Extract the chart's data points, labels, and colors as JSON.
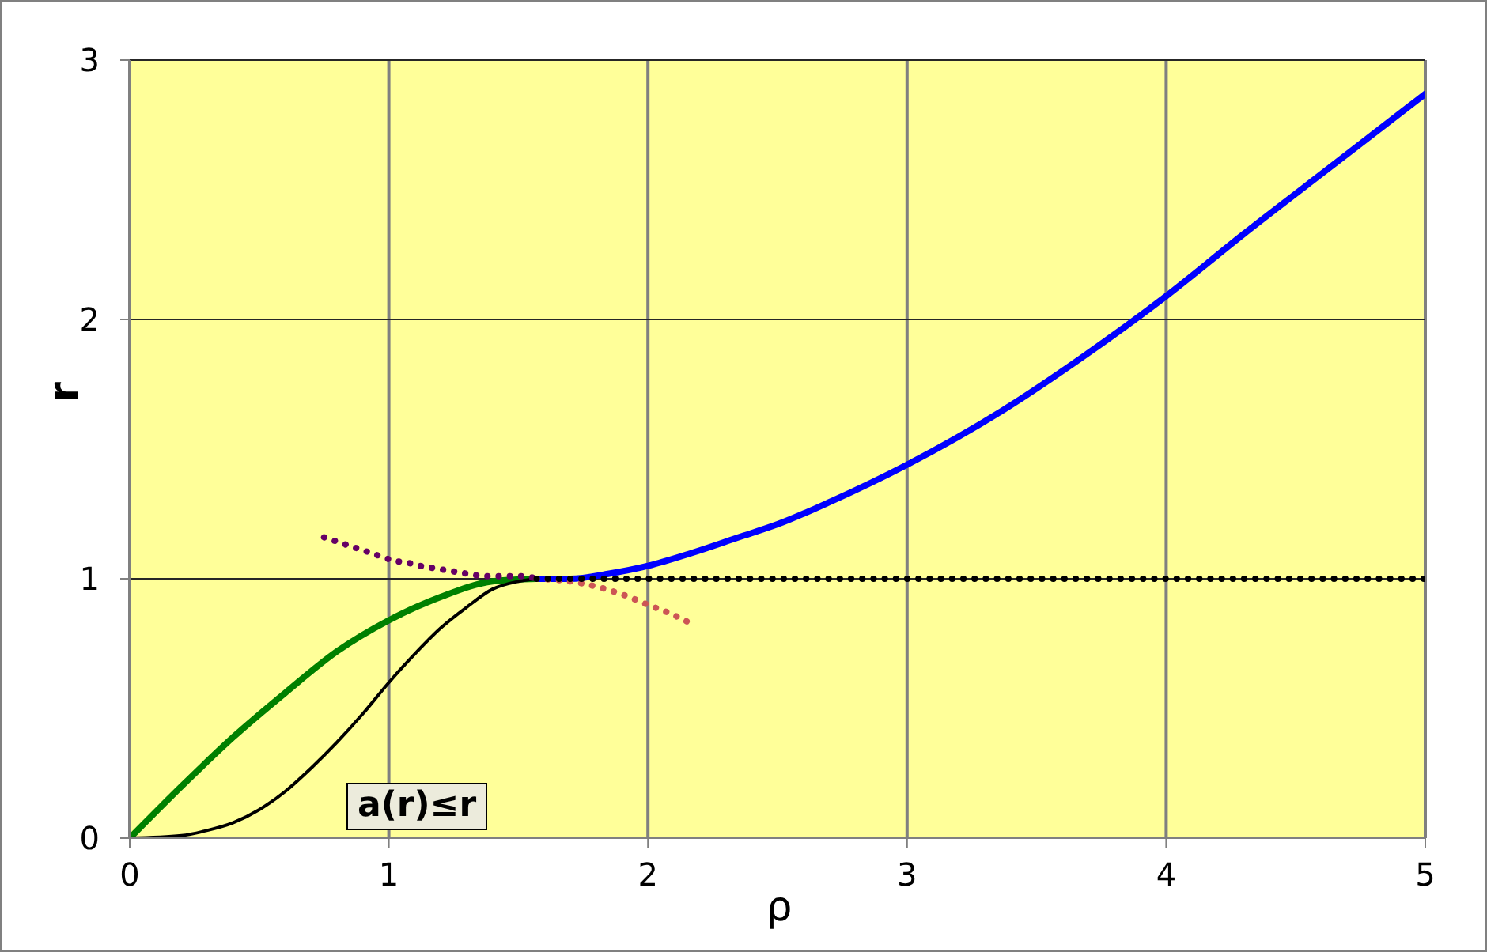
{
  "chart_data": {
    "type": "line",
    "xlabel": "ρ",
    "ylabel": "r",
    "xlim": [
      0,
      5
    ],
    "xticks": [
      0,
      1,
      2,
      3,
      4,
      5
    ],
    "ylim": [
      0,
      3
    ],
    "yticks": [
      0,
      1,
      2,
      3
    ],
    "grid": true,
    "marker": "none",
    "annotations": [
      "a(r)≤r"
    ],
    "series": [
      {
        "color": "#008000",
        "line_style": "solid",
        "x": [
          0,
          0.2,
          0.4,
          0.6,
          0.8,
          1.0,
          1.2,
          1.4,
          1.57
        ],
        "values": [
          0,
          0.2,
          0.39,
          0.56,
          0.72,
          0.84,
          0.93,
          0.99,
          1.0
        ]
      },
      {
        "color": "#000000",
        "line_style": "solid",
        "x": [
          0,
          0.2,
          0.3,
          0.4,
          0.5,
          0.6,
          0.7,
          0.8,
          0.9,
          1.0,
          1.1,
          1.2,
          1.3,
          1.4,
          1.5,
          1.57
        ],
        "values": [
          0,
          0.01,
          0.03,
          0.06,
          0.11,
          0.18,
          0.27,
          0.37,
          0.48,
          0.6,
          0.71,
          0.81,
          0.89,
          0.96,
          0.99,
          1.0
        ]
      },
      {
        "color": "#0000ff",
        "line_style": "solid",
        "x": [
          1.57,
          1.7,
          1.85,
          2,
          2.17,
          2.35,
          2.5,
          2.71,
          3,
          3.37,
          3.67,
          4,
          4.3,
          4.65,
          5
        ],
        "values": [
          1,
          1.0,
          1.02,
          1.05,
          1.1,
          1.16,
          1.21,
          1.3,
          1.44,
          1.65,
          1.85,
          2.09,
          2.33,
          2.6,
          2.87
        ]
      },
      {
        "color": "#660066",
        "line_style": "dotted",
        "x": [
          0.75,
          0.81,
          0.87,
          0.93,
          1.02,
          1.08,
          1.12,
          1.18,
          1.24,
          1.3,
          1.37,
          1.42,
          1.47,
          1.52,
          1.57
        ],
        "values": [
          1.16,
          1.14,
          1.12,
          1.1,
          1.07,
          1.06,
          1.05,
          1.04,
          1.03,
          1.02,
          1.01,
          1.01,
          1.01,
          1.01,
          1.0
        ]
      },
      {
        "color": "#cc5555",
        "line_style": "dotted",
        "x": [
          1.57,
          1.7,
          1.8,
          1.9,
          2,
          2.1,
          2.18
        ],
        "values": [
          1,
          0.99,
          0.97,
          0.94,
          0.9,
          0.86,
          0.82
        ]
      },
      {
        "color": "#000000",
        "line_style": "dotted",
        "x": [
          1.57,
          5
        ],
        "values": [
          1,
          1
        ]
      }
    ]
  }
}
